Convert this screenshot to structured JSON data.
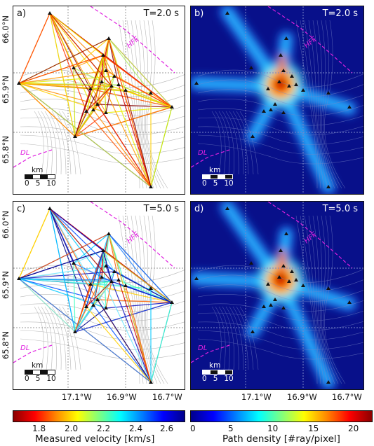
{
  "panels": [
    {
      "id": "a",
      "label": "a)",
      "time": "T=2.0 s"
    },
    {
      "id": "b",
      "label": "b)",
      "time": "T=2.0 s"
    },
    {
      "id": "c",
      "label": "c)",
      "time": "T=5.0 s"
    },
    {
      "id": "d",
      "label": "d)",
      "time": "T=5.0 s"
    }
  ],
  "y_ticks": [
    "66.0°N",
    "65.9°N",
    "65.8°N"
  ],
  "x_ticks": [
    "17.1°W",
    "16.9°W",
    "16.7°W"
  ],
  "map_labels": {
    "fault1": "HFF",
    "fault2": "DL"
  },
  "scale_bar": {
    "unit": "km",
    "ticks": [
      "0",
      "5",
      "10"
    ]
  },
  "colorbar_velocity": {
    "label": "Measured velocity [km/s]",
    "ticks": [
      "1.8",
      "2.0",
      "2.2",
      "2.4",
      "2.6"
    ],
    "colormap": "jet_r"
  },
  "colorbar_density": {
    "label": "Path density [#ray/pixel]",
    "ticks": [
      "0",
      "5",
      "10",
      "15",
      "20"
    ],
    "colormap": "jet"
  },
  "colors": {
    "frame": "#111111",
    "fault_line": "#e020e0",
    "density_background": "#08108a",
    "contour": "#9a9a9a"
  }
}
